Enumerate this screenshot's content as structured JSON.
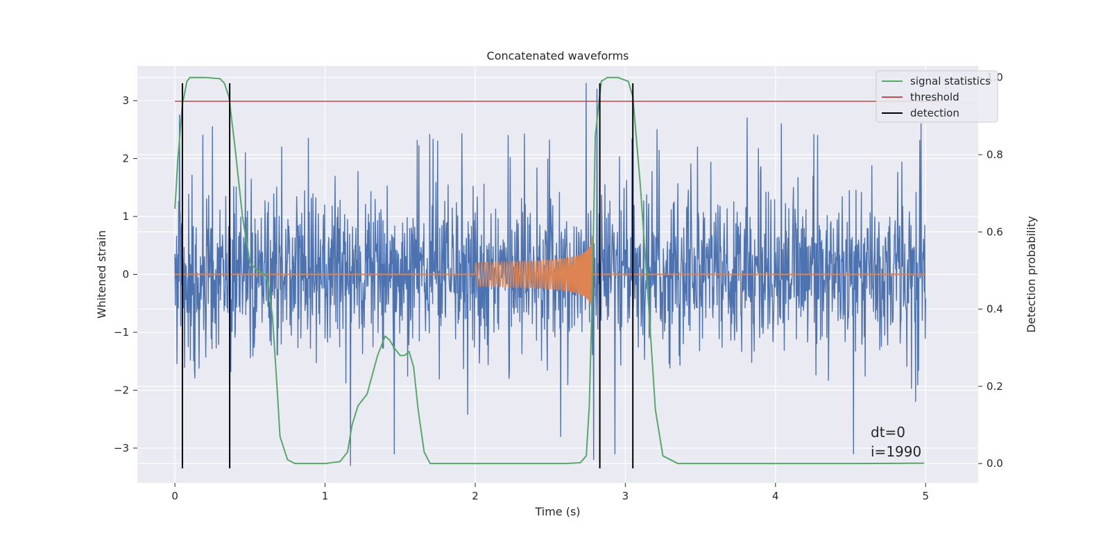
{
  "chart_data": {
    "type": "line",
    "title": "Concatenated waveforms",
    "xlabel": "Time (s)",
    "ylabel_left": "Whitened strain",
    "ylabel_right": "Detection probability",
    "xlim": [
      -0.25,
      5.35
    ],
    "ylim_left": [
      -3.6,
      3.6
    ],
    "ylim_right": [
      -0.05,
      1.03
    ],
    "x_ticks": [
      0,
      1,
      2,
      3,
      4,
      5
    ],
    "y_left_ticks": [
      3,
      2,
      1,
      0,
      -1,
      -2,
      -3
    ],
    "y_right_ticks": [
      1.0,
      0.8,
      0.6,
      0.4,
      0.2,
      0.0
    ],
    "x_tick_labels": [
      "0",
      "1",
      "2",
      "3",
      "4",
      "5"
    ],
    "y_left_tick_labels": [
      "3",
      "2",
      "1",
      "0",
      "−1",
      "−2",
      "−3"
    ],
    "y_right_tick_labels": [
      "1.0",
      "0.8",
      "0.6",
      "0.4",
      "0.2",
      "0.0"
    ],
    "grid": true,
    "legend_position": "top-right",
    "legend": [
      "signal statistics",
      "threshold",
      "detection"
    ],
    "annotations": [
      "dt=0",
      "i=1990"
    ],
    "colors": {
      "strain": "#4c72b0",
      "template": "#dd8452",
      "signal_statistics": "#55a868",
      "threshold": "#c44e52",
      "detection": "#000000",
      "plot_bg": "#eaeaf2",
      "grid": "#ffffff"
    },
    "strain": {
      "name": "",
      "axis": "left",
      "x_range": [
        0,
        5
      ],
      "amplitude_envelope": 2.5,
      "peak_times": [
        0.03,
        0.25,
        0.47,
        0.71,
        0.89,
        1.17,
        1.46,
        1.75,
        2.22,
        2.57,
        2.74,
        2.79,
        2.81,
        2.93,
        3.21,
        3.48,
        3.81,
        4.04,
        4.28,
        4.52,
        4.97
      ],
      "peak_values": [
        2.75,
        2.55,
        2.1,
        2.2,
        2.35,
        -3.3,
        -3.1,
        2.3,
        2.4,
        -2.8,
        3.3,
        -3.2,
        3.2,
        -3.1,
        2.5,
        2.2,
        2.7,
        2.6,
        2.4,
        -3.1,
        2.6
      ]
    },
    "template": {
      "name": "",
      "axis": "left",
      "flat_value": 0,
      "chirp_start": 2.0,
      "chirp_end": 2.78,
      "start_amplitude": 0.2,
      "peak_amplitude": 0.85
    },
    "threshold": {
      "name": "threshold",
      "axis": "left",
      "value": 2.99,
      "x_range": [
        0,
        5.1
      ]
    },
    "signal_statistics": {
      "name": "signal statistics",
      "axis": "right",
      "x": [
        0.0,
        0.02,
        0.05,
        0.08,
        0.1,
        0.15,
        0.2,
        0.3,
        0.33,
        0.36,
        0.4,
        0.45,
        0.5,
        0.55,
        0.6,
        0.62,
        0.65,
        0.68,
        0.7,
        0.75,
        0.8,
        0.9,
        1.0,
        1.1,
        1.15,
        1.18,
        1.22,
        1.28,
        1.35,
        1.4,
        1.43,
        1.46,
        1.5,
        1.53,
        1.56,
        1.59,
        1.62,
        1.66,
        1.7,
        1.8,
        2.0,
        2.3,
        2.6,
        2.7,
        2.74,
        2.76,
        2.78,
        2.8,
        2.84,
        2.88,
        2.95,
        3.02,
        3.05,
        3.1,
        3.15,
        3.2,
        3.25,
        3.35,
        3.6,
        4.0,
        4.5,
        4.99
      ],
      "y": [
        0.66,
        0.79,
        0.93,
        0.99,
        1.0,
        1.0,
        1.0,
        0.997,
        0.985,
        0.95,
        0.82,
        0.64,
        0.52,
        0.5,
        0.49,
        0.47,
        0.38,
        0.2,
        0.07,
        0.01,
        0.0,
        0.0,
        0.0,
        0.005,
        0.03,
        0.1,
        0.15,
        0.18,
        0.28,
        0.33,
        0.32,
        0.3,
        0.28,
        0.28,
        0.29,
        0.25,
        0.14,
        0.03,
        0.0,
        0.0,
        0.0,
        0.0,
        0.0,
        0.002,
        0.02,
        0.15,
        0.45,
        0.85,
        0.99,
        1.0,
        1.0,
        0.99,
        0.95,
        0.72,
        0.44,
        0.14,
        0.02,
        0.0,
        0.0,
        0.0,
        0.0,
        0.001
      ]
    },
    "detection": {
      "name": "detection",
      "x": [
        0.05,
        0.365,
        2.83,
        3.05
      ],
      "y_range": [
        -3.35,
        3.3
      ]
    }
  }
}
